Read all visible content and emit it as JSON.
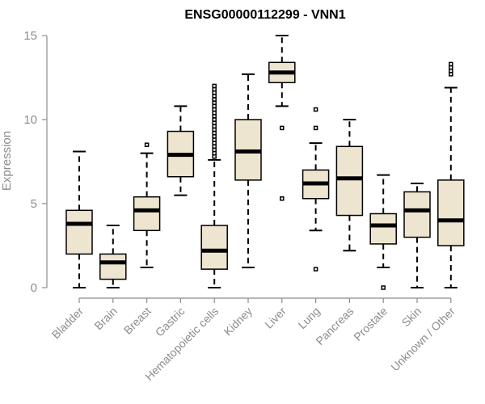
{
  "chart_data": {
    "type": "box",
    "title": "ENSG00000112299 - VNN1",
    "xlabel": "",
    "ylabel": "Expression",
    "ylim": [
      0,
      15
    ],
    "yticks": [
      0,
      5,
      10,
      15
    ],
    "categories": [
      "Bladder",
      "Brain",
      "Breast",
      "Gastric",
      "Hematopoietic cells",
      "Kidney",
      "Liver",
      "Lung",
      "Pancreas",
      "Prostate",
      "Skin",
      "Unknown / Other"
    ],
    "box_fill": "#ede5cf",
    "boxes": [
      {
        "name": "Bladder",
        "whisker_low": 0,
        "q1": 2.0,
        "median": 3.8,
        "q3": 4.6,
        "whisker_high": 8.1,
        "outliers": []
      },
      {
        "name": "Brain",
        "whisker_low": 0,
        "q1": 0.5,
        "median": 1.5,
        "q3": 2.0,
        "whisker_high": 3.7,
        "outliers": []
      },
      {
        "name": "Breast",
        "whisker_low": 1.2,
        "q1": 3.4,
        "median": 4.6,
        "q3": 5.4,
        "whisker_high": 8.0,
        "outliers": [
          8.5
        ]
      },
      {
        "name": "Gastric",
        "whisker_low": 5.5,
        "q1": 6.6,
        "median": 7.9,
        "q3": 9.3,
        "whisker_high": 10.8,
        "outliers": []
      },
      {
        "name": "Hematopoietic cells",
        "whisker_low": 0,
        "q1": 1.1,
        "median": 2.2,
        "q3": 3.7,
        "whisker_high": 7.6,
        "outliers": [
          7.8,
          8.0,
          8.2,
          8.4,
          8.6,
          8.8,
          9.0,
          9.2,
          9.4,
          9.6,
          9.8,
          10.0,
          10.2,
          10.4,
          10.6,
          10.8,
          11.0,
          11.2,
          11.4,
          11.6,
          11.8,
          12.0
        ]
      },
      {
        "name": "Kidney",
        "whisker_low": 1.2,
        "q1": 6.4,
        "median": 8.1,
        "q3": 10.0,
        "whisker_high": 12.7,
        "outliers": []
      },
      {
        "name": "Liver",
        "whisker_low": 10.8,
        "q1": 12.2,
        "median": 12.8,
        "q3": 13.4,
        "whisker_high": 15.0,
        "outliers": [
          9.5,
          5.3
        ]
      },
      {
        "name": "Lung",
        "whisker_low": 3.4,
        "q1": 5.3,
        "median": 6.2,
        "q3": 7.0,
        "whisker_high": 8.6,
        "outliers": [
          9.5,
          10.6,
          1.1
        ]
      },
      {
        "name": "Pancreas",
        "whisker_low": 2.2,
        "q1": 4.3,
        "median": 6.5,
        "q3": 8.4,
        "whisker_high": 10.0,
        "outliers": []
      },
      {
        "name": "Prostate",
        "whisker_low": 1.2,
        "q1": 2.6,
        "median": 3.7,
        "q3": 4.4,
        "whisker_high": 6.7,
        "outliers": [
          0
        ]
      },
      {
        "name": "Skin",
        "whisker_low": 0,
        "q1": 3.0,
        "median": 4.6,
        "q3": 5.7,
        "whisker_high": 6.2,
        "outliers": []
      },
      {
        "name": "Unknown / Other",
        "whisker_low": 0,
        "q1": 2.5,
        "median": 4.0,
        "q3": 6.4,
        "whisker_high": 11.9,
        "outliers": [
          12.7,
          12.9,
          13.1,
          13.3
        ]
      }
    ]
  }
}
